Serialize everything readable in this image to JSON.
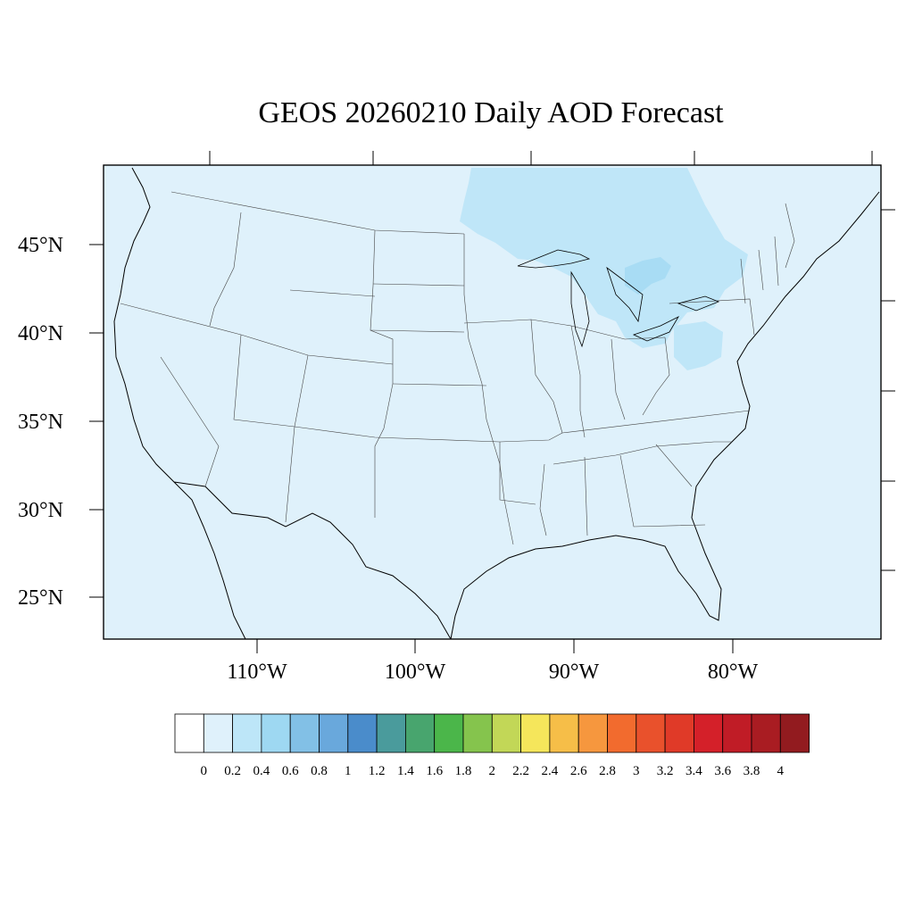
{
  "title": "GEOS 20260210 Daily AOD Forecast",
  "map": {
    "background_color": "#dff1fb",
    "ocean_color": "#dff1fb",
    "elevated_color": "#bfe6f8",
    "high_color": "#a2d8f3",
    "projection": "Lambert conformal, CONUS",
    "lat_labels": [
      "45°N",
      "40°N",
      "35°N",
      "30°N",
      "25°N"
    ],
    "lon_labels": [
      "110°W",
      "100°W",
      "90°W",
      "80°W"
    ]
  },
  "colorbar": {
    "labels": [
      "0",
      "0.2",
      "0.4",
      "0.6",
      "0.8",
      "1",
      "1.2",
      "1.4",
      "1.6",
      "1.8",
      "2",
      "2.2",
      "2.4",
      "2.6",
      "2.8",
      "3",
      "3.2",
      "3.4",
      "3.6",
      "3.8",
      "4"
    ],
    "colors": [
      "#ffffff",
      "#dff1fb",
      "#bde6f8",
      "#9ed8f2",
      "#82c0e6",
      "#69a8dc",
      "#4a8ccb",
      "#4a9b9c",
      "#48a56e",
      "#4bb64a",
      "#85c44d",
      "#c2d757",
      "#f5e65b",
      "#f6be48",
      "#f6973e",
      "#f26b2e",
      "#e9512c",
      "#e03a28",
      "#d42029",
      "#c01c26",
      "#a91c22",
      "#921b1f"
    ]
  }
}
